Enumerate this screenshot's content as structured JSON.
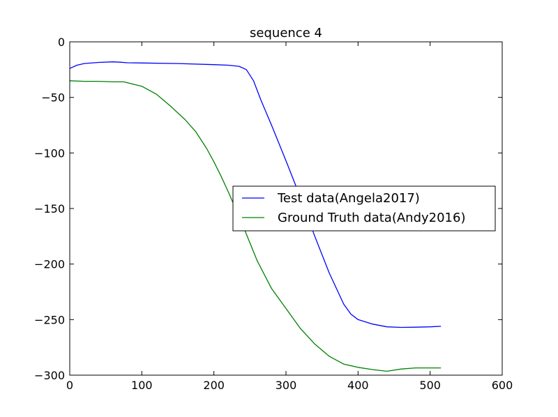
{
  "chart_data": {
    "type": "line",
    "title": "sequence 4",
    "xlabel": "",
    "ylabel": "",
    "xlim": [
      0,
      600
    ],
    "ylim": [
      -300,
      0
    ],
    "xticks": [
      0,
      100,
      200,
      300,
      400,
      500,
      600
    ],
    "yticks": [
      0,
      -50,
      -100,
      -150,
      -200,
      -250,
      -300
    ],
    "xtick_labels": [
      "0",
      "100",
      "200",
      "300",
      "400",
      "500",
      "600"
    ],
    "ytick_labels": [
      "0",
      "−50",
      "−100",
      "−150",
      "−200",
      "−250",
      "−300"
    ],
    "grid": false,
    "legend_position": "center-right",
    "series": [
      {
        "name": "Test data(Angela2017)",
        "color": "#0000ff",
        "x": [
          0,
          10,
          20,
          40,
          60,
          70,
          80,
          100,
          150,
          200,
          220,
          235,
          245,
          255,
          265,
          280,
          300,
          320,
          340,
          360,
          380,
          390,
          400,
          420,
          440,
          460,
          480,
          500,
          515
        ],
        "y": [
          -24,
          -21,
          -19.5,
          -18.5,
          -18,
          -18.3,
          -18.8,
          -19,
          -19.5,
          -20.5,
          -21,
          -22,
          -25,
          -35,
          -52,
          -75,
          -107,
          -140,
          -175,
          -208,
          -236,
          -245,
          -250,
          -254,
          -256.5,
          -257,
          -256.8,
          -256.5,
          -256
        ]
      },
      {
        "name": "Ground Truth data(Andy2016)",
        "color": "#008000",
        "x": [
          0,
          20,
          40,
          60,
          75,
          100,
          120,
          140,
          160,
          175,
          190,
          200,
          210,
          220,
          240,
          260,
          280,
          300,
          320,
          340,
          360,
          380,
          400,
          420,
          440,
          460,
          480,
          500,
          515
        ],
        "y": [
          -35,
          -35.5,
          -35.5,
          -36,
          -36,
          -40,
          -47,
          -58,
          -70,
          -81,
          -96,
          -108,
          -121,
          -135,
          -165,
          -197,
          -222,
          -240,
          -258,
          -272,
          -283,
          -290,
          -293,
          -295,
          -296.5,
          -294.5,
          -293.5,
          -293.5,
          -293.5
        ]
      }
    ]
  }
}
